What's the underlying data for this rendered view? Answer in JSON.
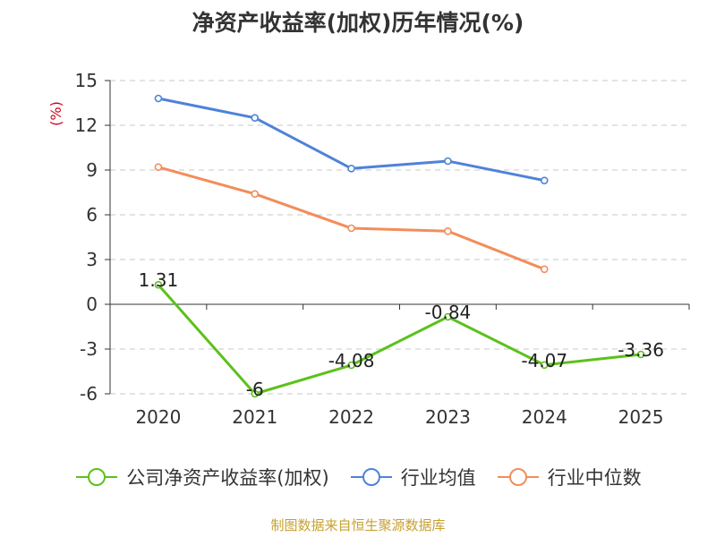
{
  "chart_data": {
    "type": "line",
    "title": "净资产收益率(加权)历年情况(%)",
    "ylabel": "(%)",
    "categories": [
      "2020",
      "2021",
      "2022",
      "2023",
      "2024",
      "2025"
    ],
    "ylim": [
      -6,
      15
    ],
    "yticks": [
      15,
      12,
      9,
      6,
      3,
      0,
      -3,
      -6
    ],
    "grid": true,
    "legend_position": "bottom",
    "series": [
      {
        "name": "公司净资产收益率(加权)",
        "color": "#5cc11b",
        "values": [
          1.31,
          -6,
          -4.08,
          -0.84,
          -4.07,
          -3.36
        ],
        "labels": [
          "1.31",
          "-6",
          "-4.08",
          "-0.84",
          "-4.07",
          "-3.36"
        ]
      },
      {
        "name": "行业均值",
        "color": "#4f82d9",
        "values": [
          13.8,
          12.5,
          9.1,
          9.6,
          8.3,
          null
        ],
        "labels": []
      },
      {
        "name": "行业中位数",
        "color": "#f28d5b",
        "values": [
          9.2,
          7.4,
          5.1,
          4.9,
          2.35,
          null
        ],
        "labels": []
      }
    ]
  },
  "source_note": "制图数据来自恒生聚源数据库"
}
